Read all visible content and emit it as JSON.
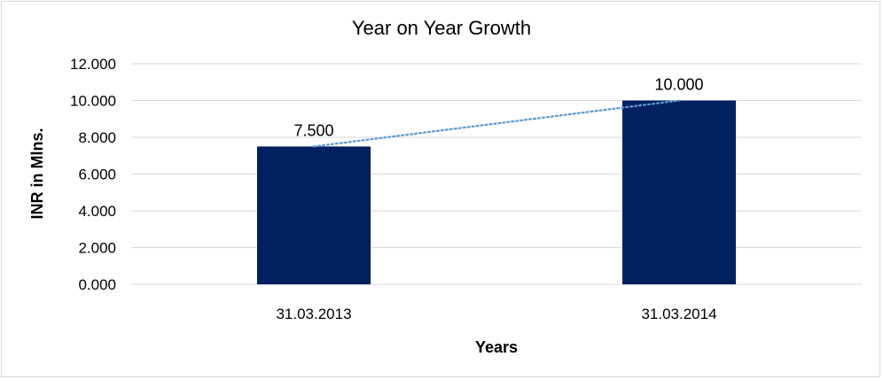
{
  "chart_data": {
    "type": "bar",
    "title": "Year on Year Growth",
    "xlabel": "Years",
    "ylabel": "INR in Mlns.",
    "categories": [
      "31.03.2013",
      "31.03.2014"
    ],
    "values": [
      7.5,
      10.0
    ],
    "value_labels": [
      "7.500",
      "10.000"
    ],
    "ylim": [
      0,
      12
    ],
    "yticks": [
      0,
      2,
      4,
      6,
      8,
      10,
      12
    ],
    "ytick_labels": [
      "0.000",
      "2.000",
      "4.000",
      "6.000",
      "8.000",
      "10.000",
      "12.000"
    ],
    "grid": true,
    "legend": "none",
    "trendline": "linear",
    "colors": {
      "bar": "#002060",
      "trendline": "#5b9bd5",
      "grid": "#d9d9d9"
    }
  }
}
